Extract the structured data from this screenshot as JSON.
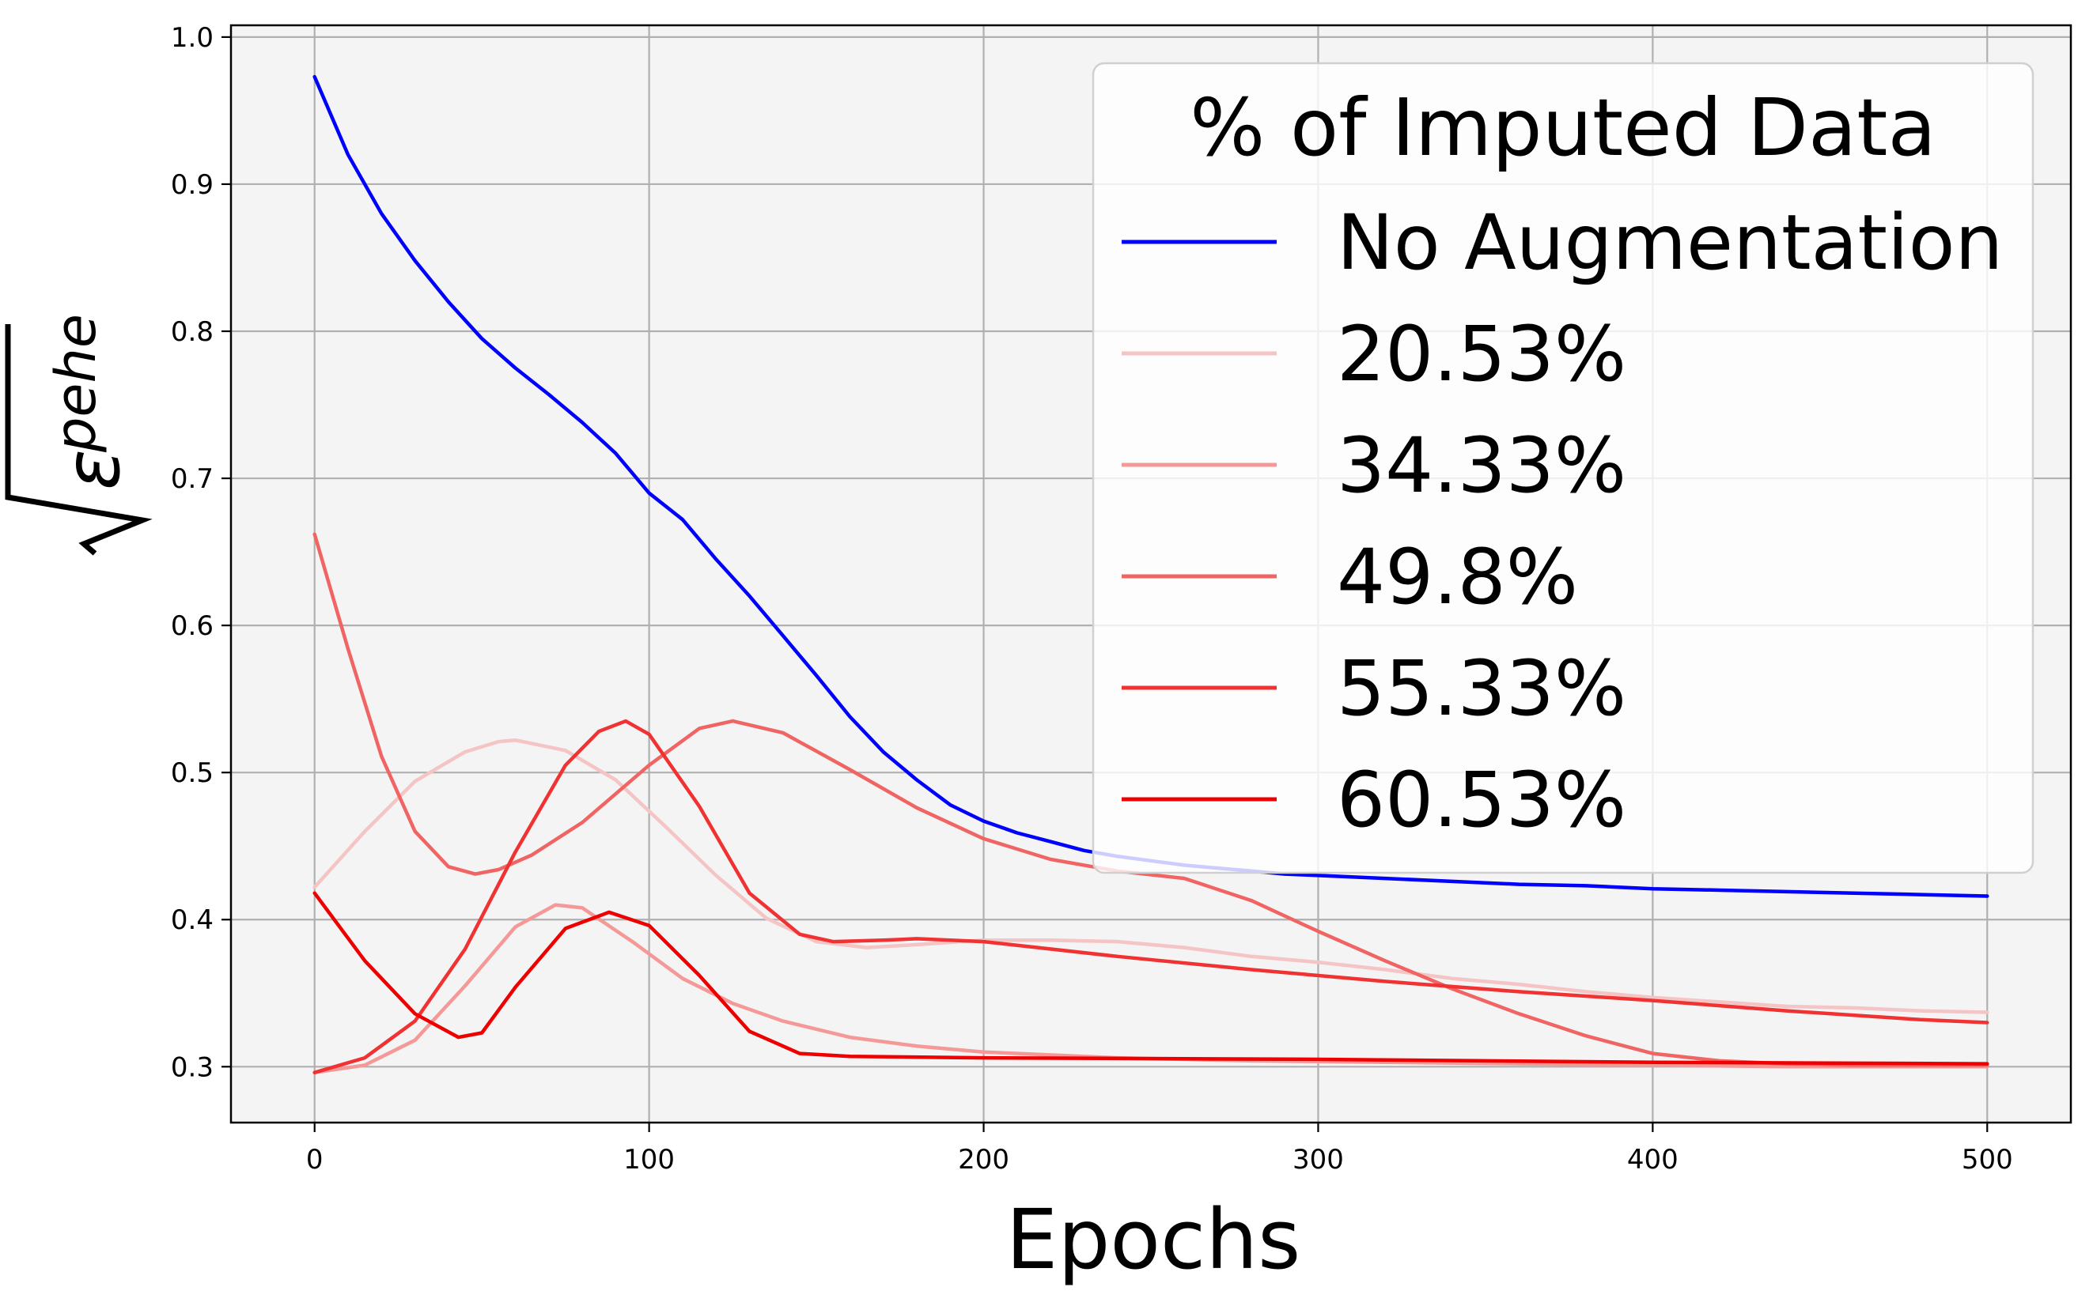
{
  "chart_data": {
    "type": "line",
    "xlabel": "Epochs",
    "ylabel": "√ε_pehe",
    "ylabel_parts": {
      "symbol": "ε",
      "subscript": "pehe"
    },
    "xlim": [
      -25,
      525
    ],
    "ylim": [
      0.262,
      1.008
    ],
    "xticks": [
      0,
      100,
      200,
      300,
      400,
      500
    ],
    "yticks": [
      0.3,
      0.4,
      0.5,
      0.6,
      0.7,
      0.8,
      0.9,
      1.0
    ],
    "xtick_labels": [
      "0",
      "100",
      "200",
      "300",
      "400",
      "500"
    ],
    "ytick_labels": [
      "0.3",
      "0.4",
      "0.5",
      "0.6",
      "0.7",
      "0.8",
      "0.9",
      "1.0"
    ],
    "grid": true,
    "legend": {
      "title": "% of Imputed Data",
      "placement": "top-right"
    },
    "series": [
      {
        "name": "No Augmentation",
        "color": "#0000ff",
        "x": [
          0,
          10,
          20,
          30,
          40,
          50,
          60,
          70,
          80,
          90,
          100,
          110,
          120,
          130,
          140,
          150,
          160,
          170,
          180,
          190,
          200,
          210,
          220,
          230,
          240,
          250,
          260,
          270,
          280,
          290,
          300,
          320,
          340,
          360,
          380,
          400,
          420,
          440,
          460,
          480,
          500
        ],
        "y": [
          0.973,
          0.92,
          0.88,
          0.848,
          0.82,
          0.795,
          0.775,
          0.757,
          0.738,
          0.717,
          0.69,
          0.672,
          0.645,
          0.62,
          0.593,
          0.566,
          0.538,
          0.514,
          0.495,
          0.478,
          0.467,
          0.459,
          0.453,
          0.447,
          0.443,
          0.44,
          0.437,
          0.435,
          0.433,
          0.431,
          0.43,
          0.428,
          0.426,
          0.424,
          0.423,
          0.421,
          0.42,
          0.419,
          0.418,
          0.417,
          0.416
        ]
      },
      {
        "name": "20.53%",
        "color": "#f5c4c4",
        "x": [
          0,
          15,
          30,
          45,
          55,
          60,
          75,
          90,
          105,
          120,
          135,
          150,
          165,
          180,
          200,
          220,
          240,
          260,
          280,
          300,
          320,
          340,
          360,
          380,
          400,
          420,
          440,
          460,
          480,
          500
        ],
        "y": [
          0.422,
          0.46,
          0.494,
          0.514,
          0.521,
          0.522,
          0.515,
          0.495,
          0.463,
          0.43,
          0.401,
          0.385,
          0.381,
          0.383,
          0.386,
          0.386,
          0.385,
          0.381,
          0.375,
          0.371,
          0.366,
          0.36,
          0.356,
          0.351,
          0.347,
          0.344,
          0.341,
          0.34,
          0.338,
          0.337
        ]
      },
      {
        "name": "34.33%",
        "color": "#f59898",
        "x": [
          0,
          15,
          30,
          45,
          60,
          72,
          80,
          95,
          110,
          125,
          140,
          160,
          180,
          200,
          240,
          280,
          320,
          360,
          400,
          440,
          480,
          500
        ],
        "y": [
          0.296,
          0.301,
          0.318,
          0.355,
          0.395,
          0.41,
          0.408,
          0.385,
          0.36,
          0.343,
          0.331,
          0.32,
          0.314,
          0.31,
          0.306,
          0.304,
          0.303,
          0.302,
          0.301,
          0.3,
          0.3,
          0.3
        ]
      },
      {
        "name": "49.8%",
        "color": "#f06464",
        "x": [
          0,
          10,
          20,
          30,
          40,
          48,
          55,
          65,
          80,
          100,
          115,
          125,
          140,
          160,
          180,
          200,
          220,
          240,
          260,
          280,
          300,
          320,
          340,
          360,
          380,
          400,
          420,
          440,
          460,
          480,
          500
        ],
        "y": [
          0.662,
          0.584,
          0.511,
          0.46,
          0.436,
          0.431,
          0.434,
          0.444,
          0.466,
          0.505,
          0.53,
          0.535,
          0.527,
          0.502,
          0.476,
          0.455,
          0.441,
          0.433,
          0.428,
          0.413,
          0.392,
          0.372,
          0.353,
          0.336,
          0.321,
          0.309,
          0.304,
          0.302,
          0.301,
          0.301,
          0.301
        ]
      },
      {
        "name": "55.33%",
        "color": "#f03232",
        "x": [
          0,
          15,
          30,
          45,
          60,
          75,
          85,
          93,
          100,
          115,
          130,
          145,
          155,
          170,
          180,
          200,
          240,
          280,
          320,
          360,
          400,
          440,
          480,
          500
        ],
        "y": [
          0.296,
          0.306,
          0.331,
          0.38,
          0.446,
          0.505,
          0.528,
          0.535,
          0.526,
          0.477,
          0.418,
          0.39,
          0.385,
          0.386,
          0.387,
          0.385,
          0.375,
          0.366,
          0.358,
          0.351,
          0.345,
          0.338,
          0.332,
          0.33
        ]
      },
      {
        "name": "60.53%",
        "color": "#ee0000",
        "x": [
          0,
          15,
          30,
          43,
          50,
          60,
          75,
          88,
          100,
          115,
          130,
          145,
          160,
          200,
          300,
          400,
          500
        ],
        "y": [
          0.418,
          0.372,
          0.336,
          0.32,
          0.323,
          0.354,
          0.394,
          0.405,
          0.396,
          0.362,
          0.324,
          0.309,
          0.307,
          0.306,
          0.305,
          0.303,
          0.302
        ]
      }
    ]
  }
}
